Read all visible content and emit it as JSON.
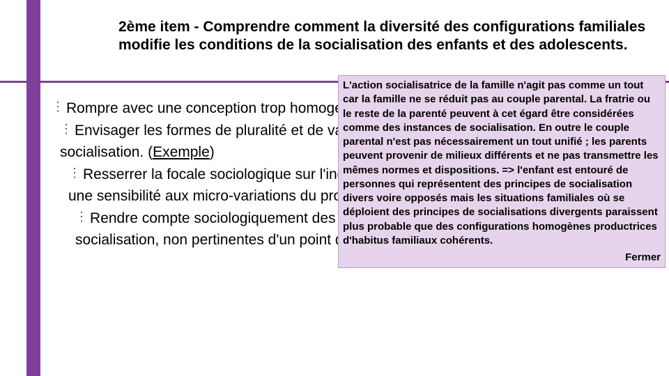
{
  "colors": {
    "accent": "#7f3f98",
    "popup_bg": "#e6d4ec",
    "popup_border": "#b89cc7",
    "text": "#000000",
    "background": "#ffffff"
  },
  "title": "2ème item - Comprendre comment la diversité des configurations familiales modifie les conditions de la socialisation des enfants et des adolescents.",
  "bullets": {
    "b1": "Rompre avec une conception trop homogénéisante de la socialisation.",
    "b2_a": "Envisager les formes de pluralité et de variation internes au processus de socialisation. ",
    "b2_link_open": "(",
    "b2_link": "Exemple",
    "b2_link_close": ")",
    "b3": "Resserrer la focale sociologique sur l'individu : une approche microscopique et une sensibilité aux micro-variations du processus.",
    "b4": "Rendre compte sociologiquement des « petites » différences « secondaires » de socialisation, non pertinentes d'un point de vue statistique."
  },
  "popup": {
    "text": "L'action socialisatrice de la famille n'agit pas comme un tout car la famille ne se réduit pas au couple parental. La fratrie ou le reste de la parenté peuvent à cet égard être considérées comme des instances de socialisation. En outre  le couple parental n'est pas nécessairement un tout unifié ; les parents peuvent provenir de milieux différents et ne pas transmettre les mêmes normes et dispositions.\n=> l'enfant est entouré de personnes qui représentent des principes de socialisation divers voire opposés mais les situations familiales où se déploient des principes de socialisations divergents paraissent plus probable que des configurations homogènes productrices d'habitus familiaux cohérents.",
    "close": "Fermer"
  }
}
